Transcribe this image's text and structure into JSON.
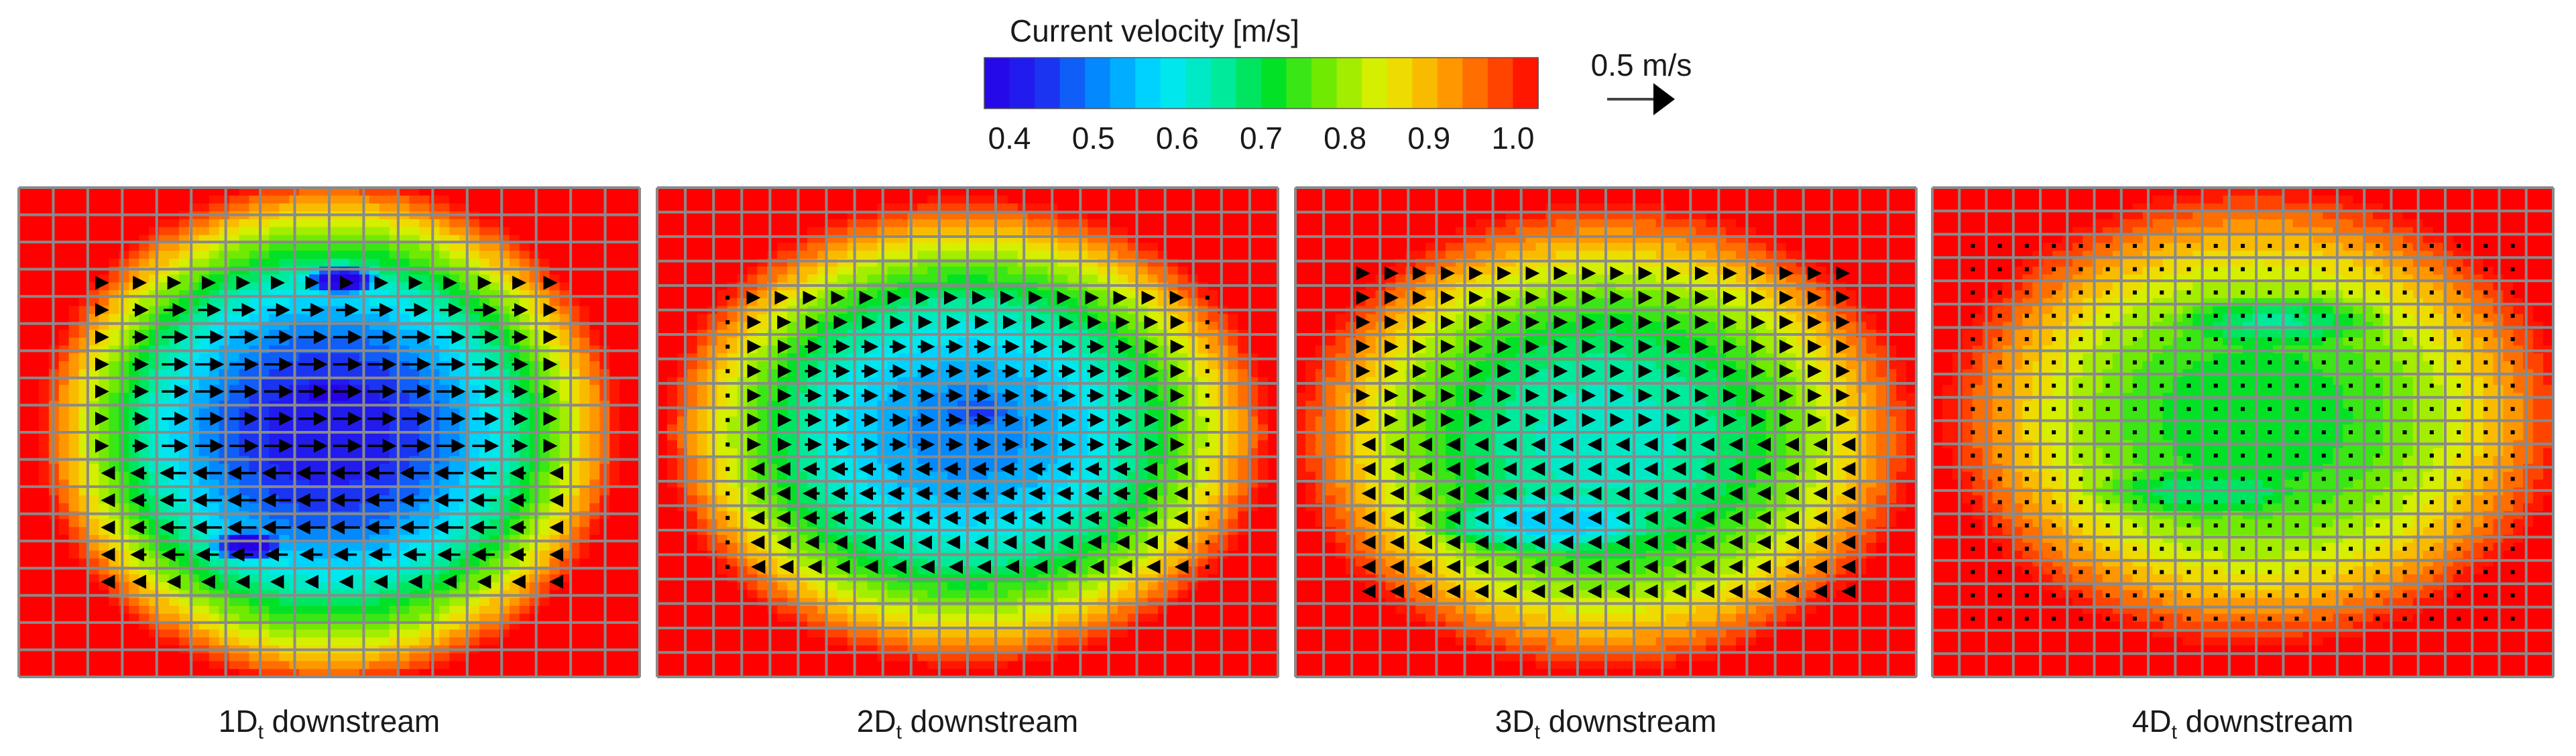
{
  "chart_data": {
    "type": "heatmap",
    "title": "Current velocity [m/s]",
    "colorbar": {
      "min": 0.37,
      "max": 1.03,
      "ticks": [
        "0.4",
        "0.5",
        "0.6",
        "0.7",
        "0.8",
        "0.9",
        "1.0"
      ],
      "levels": 22
    },
    "reference_vector": {
      "label": "0.5 m/s",
      "magnitude": 0.5
    },
    "panels": [
      {
        "label_prefix": "1D",
        "label_sub": "t",
        "label_suffix": " downstream",
        "grid": {
          "rows": 18,
          "cols": 18
        },
        "background": 1.03,
        "blobs": [
          {
            "cx": 0.5,
            "cy": 0.5,
            "rx": 0.47,
            "ry": 0.52,
            "v": 0.4
          },
          {
            "cx": 0.52,
            "cy": 0.19,
            "rx": 0.1,
            "ry": 0.055,
            "v": 0.33
          },
          {
            "cx": 0.5,
            "cy": 0.42,
            "rx": 0.12,
            "ry": 0.06,
            "v": 0.33
          },
          {
            "cx": 0.37,
            "cy": 0.73,
            "rx": 0.1,
            "ry": 0.06,
            "v": 0.33
          }
        ],
        "vectors": {
          "rowRange": [
            0.14,
            0.86
          ],
          "colRange": [
            0.12,
            0.88
          ],
          "flow": "shear"
        }
      },
      {
        "label_prefix": "2D",
        "label_sub": "t",
        "label_suffix": " downstream",
        "grid": {
          "rows": 20,
          "cols": 22
        },
        "background": 1.03,
        "blobs": [
          {
            "cx": 0.5,
            "cy": 0.5,
            "rx": 0.49,
            "ry": 0.48,
            "v": 0.5
          },
          {
            "cx": 0.52,
            "cy": 0.46,
            "rx": 0.17,
            "ry": 0.085,
            "v": 0.45
          }
        ],
        "vectors": {
          "rowRange": [
            0.18,
            0.82
          ],
          "colRange": [
            0.1,
            0.9
          ],
          "flow": "shear"
        }
      },
      {
        "label_prefix": "3D",
        "label_sub": "t",
        "label_suffix": " downstream",
        "grid": {
          "rows": 20,
          "cols": 22
        },
        "background": 1.03,
        "blobs": [
          {
            "cx": 0.5,
            "cy": 0.51,
            "rx": 0.5,
            "ry": 0.48,
            "v": 0.62
          },
          {
            "cx": 0.42,
            "cy": 0.68,
            "rx": 0.3,
            "ry": 0.11,
            "v": 0.55
          }
        ],
        "vectors": {
          "rowRange": [
            0.16,
            0.84
          ],
          "colRange": [
            0.08,
            0.92
          ],
          "flow": "weak"
        }
      },
      {
        "label_prefix": "4D",
        "label_sub": "t",
        "label_suffix": " downstream",
        "grid": {
          "rows": 21,
          "cols": 23
        },
        "background": 1.03,
        "blobs": [
          {
            "cx": 0.52,
            "cy": 0.47,
            "rx": 0.5,
            "ry": 0.47,
            "v": 0.7
          },
          {
            "cx": 0.55,
            "cy": 0.28,
            "rx": 0.3,
            "ry": 0.1,
            "v": 0.66
          },
          {
            "cx": 0.45,
            "cy": 0.62,
            "rx": 0.32,
            "ry": 0.1,
            "v": 0.67
          }
        ],
        "vectors": {
          "rowRange": [
            0.1,
            0.9
          ],
          "colRange": [
            0.05,
            0.95
          ],
          "flow": "dots"
        }
      }
    ]
  }
}
